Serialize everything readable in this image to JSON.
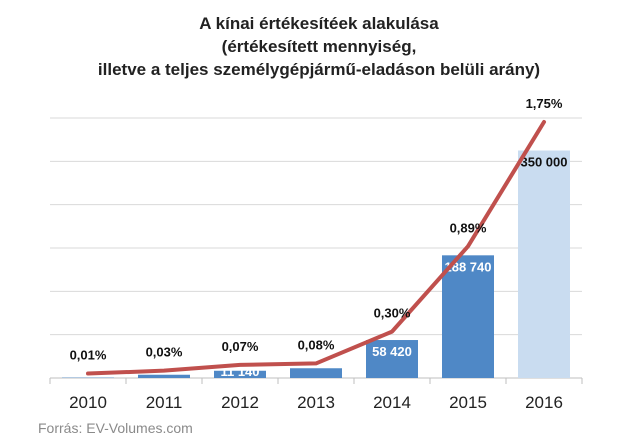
{
  "chart_data": {
    "type": "bar",
    "title": "A kínai értékesítéek alakulása",
    "subtitle_lines": [
      "(értékesített mennyiség,",
      "illetve a teljes személygépjármű-eladáson belüli arány)"
    ],
    "categories": [
      "2010",
      "2011",
      "2012",
      "2013",
      "2014",
      "2015",
      "2016"
    ],
    "series": [
      {
        "type": "bar",
        "values": [
          600,
          5000,
          11140,
          15000,
          58420,
          188740,
          350000
        ],
        "labels": [
          "",
          "",
          "11 140",
          "",
          "58 420",
          "188 740",
          "350 000"
        ],
        "colors": [
          "#4f88c6",
          "#4f88c6",
          "#4f88c6",
          "#4f88c6",
          "#4f88c6",
          "#4f88c6",
          "#c9dcf0"
        ]
      },
      {
        "type": "line",
        "values": [
          0.01,
          0.03,
          0.07,
          0.08,
          0.3,
          0.89,
          1.75
        ],
        "labels": [
          "0,01%",
          "0,03%",
          "0,07%",
          "0,08%",
          "0,30%",
          "0,89%",
          "1,75%"
        ],
        "color": "#c0504d"
      }
    ],
    "ylim_bar": [
      0,
      400000
    ],
    "ylim_line": [
      0,
      1.75
    ],
    "grid": true,
    "source": "Forrás: EV-Volumes.com"
  }
}
